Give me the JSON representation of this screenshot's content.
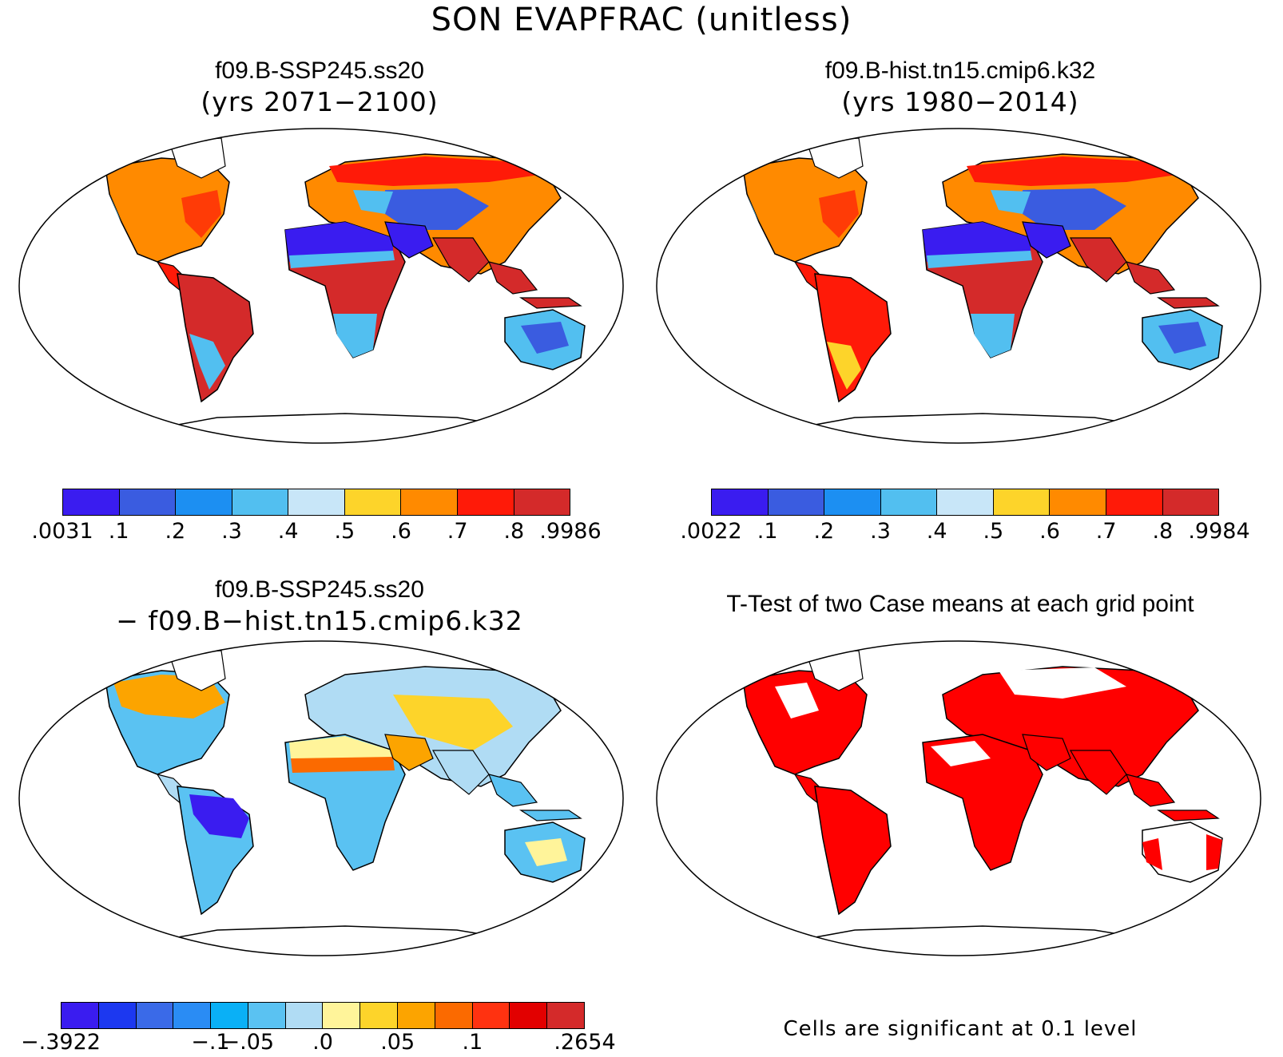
{
  "title": "SON EVAPFRAC (unitless)",
  "panels": [
    {
      "id": "ssp245",
      "title_line1": "f09.B-SSP245.ss20",
      "title_line2": "(yrs 2071−2100)",
      "colorbar": {
        "colors": [
          "#3a1cf0",
          "#3a5ce0",
          "#1c8ff2",
          "#52bff0",
          "#c8e6f8",
          "#fdd42a",
          "#ff8a00",
          "#ff1a08",
          "#d42a2a"
        ],
        "tick_labels": [
          ".0031",
          ".1",
          ".2",
          ".3",
          ".4",
          ".5",
          ".6",
          ".7",
          ".8",
          ".9986"
        ]
      }
    },
    {
      "id": "hist",
      "title_line1": "f09.B-hist.tn15.cmip6.k32",
      "title_line2": "(yrs 1980−2014)",
      "colorbar": {
        "colors": [
          "#3a1cf0",
          "#3a5ce0",
          "#1c8ff2",
          "#52bff0",
          "#c8e6f8",
          "#fdd42a",
          "#ff8a00",
          "#ff1a08",
          "#d42a2a"
        ],
        "tick_labels": [
          ".0022",
          ".1",
          ".2",
          ".3",
          ".4",
          ".5",
          ".6",
          ".7",
          ".8",
          ".9984"
        ]
      }
    },
    {
      "id": "diff",
      "title_line1": "f09.B-SSP245.ss20",
      "title_line2": "− f09.B−hist.tn15.cmip6.k32",
      "colorbar": {
        "colors": [
          "#3a1cf0",
          "#1c38f0",
          "#3a6ae8",
          "#2a8cf4",
          "#0ab0f6",
          "#5ac2f2",
          "#b0dcf4",
          "#fff49a",
          "#fdd42a",
          "#fca400",
          "#fb6a00",
          "#ff3210",
          "#e20000",
          "#d42a2a"
        ],
        "tick_labels": [
          "−.3922",
          "−.1",
          "−.05",
          ".0",
          ".05",
          ".1",
          ".2654"
        ]
      }
    },
    {
      "id": "ttest",
      "title_line1": "T-Test of two Case means at each grid point",
      "note": "Cells are significant at 0.1 level"
    }
  ],
  "colors": {
    "significant": "#ff0000",
    "outline": "#000000"
  }
}
